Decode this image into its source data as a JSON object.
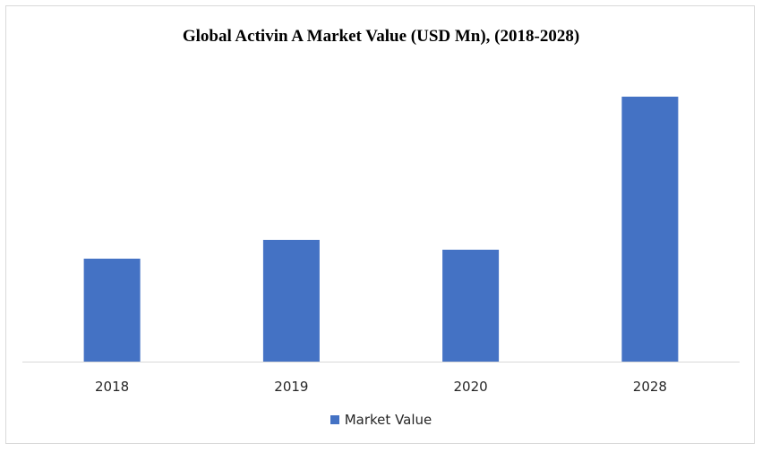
{
  "chart_data": {
    "type": "bar",
    "title": "Global Activin A Market Value (USD Mn), (2018-2028)",
    "categories": [
      "2018",
      "2019",
      "2020",
      "2028"
    ],
    "series": [
      {
        "name": "Market Value",
        "values": [
          115,
          136,
          125,
          296
        ],
        "color": "#4472c4"
      }
    ],
    "ylim": [
      0,
      320
    ],
    "grid": false,
    "legend_position": "bottom"
  }
}
